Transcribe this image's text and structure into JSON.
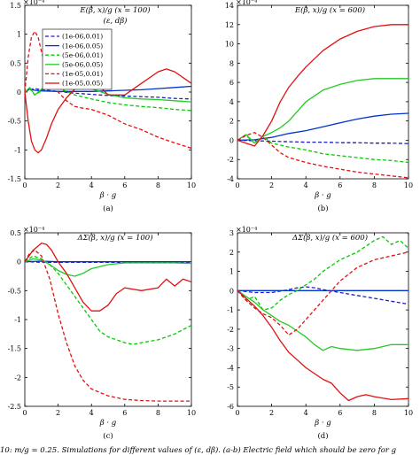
{
  "colors": {
    "series_1": "#1f1fbf",
    "series_2": "#0033cc",
    "series_3": "#00cc00",
    "series_4": "#22cc22",
    "series_5": "#e01010",
    "series_6": "#e01010"
  },
  "legend": [
    "(1e-06,0.01)",
    "(1e-06,0.05)",
    "(5e-06,0.01)",
    "(5e-06,0.05)",
    "(1e-05,0.01)",
    "(1e-05,0.05)"
  ],
  "bottom_caption": "10:  m/g = 0.25.  Simulations for different values of (ε, dβ).  (a-b) Electric field which should be zero for g",
  "chart_data": [
    {
      "type": "line",
      "panel": "(a)",
      "title": "E(β, x)/g (x = 100)",
      "subtitle": "(ε, dβ)",
      "exponent": "×10⁻⁴",
      "xlabel": "β · g",
      "ylabel": "",
      "xlim": [
        0,
        10
      ],
      "ylim": [
        -1.5,
        1.5
      ],
      "xticks": [
        0,
        2,
        4,
        6,
        8,
        10
      ],
      "yticks": [
        -1.5,
        -1,
        -0.5,
        0,
        0.5,
        1,
        1.5
      ],
      "legend_position": "top-left",
      "series": [
        {
          "name": "(1e-06,0.01)",
          "style": "dashed",
          "x": [
            0,
            0.3,
            0.6,
            1,
            2,
            3,
            4,
            5,
            6,
            7,
            8,
            9,
            10
          ],
          "y": [
            0,
            0.04,
            0.06,
            0.04,
            0.01,
            -0.02,
            -0.04,
            -0.06,
            -0.07,
            -0.08,
            -0.09,
            -0.11,
            -0.12
          ]
        },
        {
          "name": "(1e-06,0.05)",
          "style": "solid",
          "x": [
            0,
            0.3,
            0.6,
            1,
            2,
            3,
            4,
            5,
            6,
            7,
            8,
            9,
            10
          ],
          "y": [
            0,
            0.05,
            0.03,
            0.02,
            0.01,
            0.01,
            0.01,
            0.02,
            0.03,
            0.04,
            0.06,
            0.08,
            0.1
          ]
        },
        {
          "name": "(5e-06,0.01)",
          "style": "dashed",
          "x": [
            0,
            0.3,
            0.6,
            1,
            1.5,
            2,
            3,
            4,
            5,
            6,
            7,
            8,
            9,
            10
          ],
          "y": [
            0,
            0.06,
            -0.05,
            0.02,
            0.12,
            0.07,
            -0.05,
            -0.12,
            -0.18,
            -0.22,
            -0.25,
            -0.27,
            -0.3,
            -0.32
          ]
        },
        {
          "name": "(5e-06,0.05)",
          "style": "solid",
          "x": [
            0,
            0.3,
            0.6,
            1,
            1.5,
            2,
            2.5,
            3,
            4,
            5,
            6,
            7,
            8,
            9,
            10
          ],
          "y": [
            0,
            0.08,
            -0.05,
            0.05,
            0.15,
            0.27,
            0.28,
            0.22,
            0.06,
            -0.04,
            -0.1,
            -0.12,
            -0.13,
            -0.15,
            -0.17
          ]
        },
        {
          "name": "(1e-05,0.01)",
          "style": "dashed",
          "x": [
            0,
            0.2,
            0.4,
            0.6,
            0.8,
            1,
            1.3,
            1.6,
            2,
            2.5,
            3,
            3.5,
            4,
            5,
            6,
            7,
            8,
            9,
            10
          ],
          "y": [
            0,
            0.6,
            0.95,
            1.05,
            0.95,
            0.7,
            0.4,
            0.15,
            0.0,
            -0.15,
            -0.25,
            -0.28,
            -0.3,
            -0.4,
            -0.55,
            -0.65,
            -0.78,
            -0.88,
            -0.97
          ]
        },
        {
          "name": "(1e-05,0.05)",
          "style": "solid",
          "x": [
            0,
            0.2,
            0.4,
            0.6,
            0.8,
            1,
            1.3,
            1.6,
            2,
            2.5,
            3,
            3.5,
            4,
            4.5,
            5,
            6,
            7,
            8,
            8.5,
            9,
            10
          ],
          "y": [
            0,
            -0.5,
            -0.85,
            -1.0,
            -1.05,
            -1.0,
            -0.8,
            -0.55,
            -0.3,
            -0.1,
            0.05,
            0.2,
            0.2,
            0.1,
            -0.05,
            -0.05,
            0.15,
            0.35,
            0.4,
            0.35,
            0.15
          ]
        }
      ]
    },
    {
      "type": "line",
      "panel": "(b)",
      "title": "E(β, x)/g (x = 600)",
      "exponent": "×10⁻⁴",
      "xlabel": "β · g",
      "ylabel": "",
      "xlim": [
        0,
        10
      ],
      "ylim": [
        -4,
        14
      ],
      "xticks": [
        0,
        2,
        4,
        6,
        8,
        10
      ],
      "yticks": [
        -4,
        -2,
        0,
        2,
        4,
        6,
        8,
        10,
        12,
        14
      ],
      "series": [
        {
          "name": "(1e-06,0.01)",
          "style": "dashed",
          "x": [
            0,
            1,
            2,
            3,
            4,
            5,
            6,
            7,
            8,
            9,
            10
          ],
          "y": [
            0,
            -0.05,
            -0.1,
            -0.15,
            -0.2,
            -0.2,
            -0.25,
            -0.25,
            -0.3,
            -0.3,
            -0.35
          ]
        },
        {
          "name": "(1e-06,0.05)",
          "style": "solid",
          "x": [
            0,
            1,
            2,
            3,
            4,
            5,
            6,
            7,
            8,
            9,
            10
          ],
          "y": [
            0,
            0.05,
            0.3,
            0.7,
            1.0,
            1.4,
            1.8,
            2.2,
            2.5,
            2.7,
            2.8
          ]
        },
        {
          "name": "(5e-06,0.01)",
          "style": "dashed",
          "x": [
            0,
            0.5,
            1,
            1.5,
            2,
            3,
            4,
            5,
            6,
            7,
            8,
            9,
            10
          ],
          "y": [
            0,
            0.5,
            -0.3,
            0.4,
            -0.3,
            -0.7,
            -1.0,
            -1.4,
            -1.6,
            -1.8,
            -2.0,
            -2.1,
            -2.3
          ]
        },
        {
          "name": "(5e-06,0.05)",
          "style": "solid",
          "x": [
            0,
            0.5,
            1,
            1.5,
            2,
            2.5,
            3,
            3.5,
            4,
            5,
            6,
            7,
            8,
            9,
            10
          ],
          "y": [
            0,
            0.6,
            -0.3,
            0.4,
            0.8,
            1.3,
            2.0,
            3.0,
            4.0,
            5.2,
            5.8,
            6.2,
            6.4,
            6.4,
            6.4
          ]
        },
        {
          "name": "(1e-05,0.01)",
          "style": "dashed",
          "x": [
            0,
            0.5,
            1,
            1.5,
            2,
            2.5,
            3,
            4,
            5,
            6,
            7,
            8,
            9,
            10
          ],
          "y": [
            0,
            0.5,
            0.8,
            0.3,
            -0.5,
            -1.3,
            -1.8,
            -2.3,
            -2.7,
            -3.0,
            -3.3,
            -3.5,
            -3.7,
            -3.9
          ]
        },
        {
          "name": "(1e-05,0.05)",
          "style": "solid",
          "x": [
            0,
            0.5,
            1,
            1.5,
            2,
            2.5,
            3,
            3.5,
            4,
            5,
            6,
            7,
            8,
            9,
            10
          ],
          "y": [
            0,
            -0.3,
            -0.6,
            0.5,
            2.0,
            4.0,
            5.5,
            6.6,
            7.6,
            9.3,
            10.5,
            11.3,
            11.8,
            12.0,
            12.0
          ]
        }
      ]
    },
    {
      "type": "line",
      "panel": "(c)",
      "title": "ΔΣ(β, x)/g (x = 100)",
      "exponent": "×10⁻⁴",
      "xlabel": "β · g",
      "ylabel": "",
      "xlim": [
        0,
        10
      ],
      "ylim": [
        -2.5,
        0.5
      ],
      "xticks": [
        0,
        2,
        4,
        6,
        8,
        10
      ],
      "yticks": [
        -2.5,
        -2,
        -1.5,
        -1,
        -0.5,
        0,
        0.5
      ],
      "series": [
        {
          "name": "(1e-06,0.01)",
          "style": "dashed",
          "x": [
            0,
            1,
            2,
            3,
            4,
            5,
            6,
            7,
            8,
            9,
            10
          ],
          "y": [
            0,
            -0.01,
            -0.01,
            -0.01,
            -0.01,
            -0.01,
            -0.01,
            -0.01,
            -0.01,
            -0.01,
            -0.01
          ]
        },
        {
          "name": "(1e-06,0.05)",
          "style": "solid",
          "x": [
            0,
            1,
            2,
            3,
            4,
            5,
            6,
            7,
            8,
            9,
            10
          ],
          "y": [
            0,
            0.01,
            0,
            0,
            0,
            0,
            0,
            0,
            0,
            0,
            0
          ]
        },
        {
          "name": "(5e-06,0.01)",
          "style": "dashed",
          "x": [
            0,
            0.5,
            1,
            1.5,
            2,
            2.5,
            3,
            3.5,
            4,
            4.5,
            5,
            5.5,
            6,
            6.5,
            7,
            8,
            9,
            10
          ],
          "y": [
            0,
            0.1,
            0.05,
            -0.05,
            -0.2,
            -0.4,
            -0.6,
            -0.8,
            -1.0,
            -1.2,
            -1.3,
            -1.35,
            -1.4,
            -1.43,
            -1.4,
            -1.35,
            -1.25,
            -1.1
          ]
        },
        {
          "name": "(5e-06,0.05)",
          "style": "solid",
          "x": [
            0,
            0.5,
            1,
            1.5,
            2,
            2.5,
            3,
            3.5,
            4,
            5,
            6,
            7,
            8,
            9,
            10
          ],
          "y": [
            0,
            0.05,
            0.03,
            -0.05,
            -0.15,
            -0.22,
            -0.25,
            -0.2,
            -0.12,
            -0.05,
            -0.02,
            -0.02,
            -0.02,
            -0.02,
            -0.03
          ]
        },
        {
          "name": "(1e-05,0.01)",
          "style": "dashed",
          "x": [
            0,
            0.3,
            0.6,
            1,
            1.5,
            2,
            2.5,
            3,
            3.5,
            4,
            5,
            6,
            7,
            8,
            9,
            10
          ],
          "y": [
            0,
            0.15,
            0.2,
            0.1,
            -0.3,
            -0.9,
            -1.4,
            -1.8,
            -2.05,
            -2.2,
            -2.32,
            -2.38,
            -2.4,
            -2.41,
            -2.41,
            -2.41
          ]
        },
        {
          "name": "(1e-05,0.05)",
          "style": "solid",
          "x": [
            0,
            0.5,
            1,
            1.3,
            1.6,
            2,
            2.5,
            3,
            3.5,
            4,
            4.5,
            5,
            5.5,
            6,
            7,
            8,
            8.5,
            9,
            9.5,
            10
          ],
          "y": [
            0,
            0.2,
            0.32,
            0.3,
            0.2,
            0.0,
            -0.2,
            -0.45,
            -0.7,
            -0.85,
            -0.85,
            -0.75,
            -0.55,
            -0.45,
            -0.5,
            -0.45,
            -0.3,
            -0.42,
            -0.3,
            -0.35
          ]
        }
      ]
    },
    {
      "type": "line",
      "panel": "(d)",
      "title": "ΔΣ(β, x)/g (x = 600)",
      "exponent": "×10⁻⁴",
      "xlabel": "β · g",
      "ylabel": "",
      "xlim": [
        0,
        10
      ],
      "ylim": [
        -6,
        3
      ],
      "xticks": [
        0,
        2,
        4,
        6,
        8,
        10
      ],
      "yticks": [
        -6,
        -5,
        -4,
        -3,
        -2,
        -1,
        0,
        1,
        2,
        3
      ],
      "series": [
        {
          "name": "(1e-06,0.01)",
          "style": "dashed",
          "x": [
            0,
            1,
            2,
            3,
            3.5,
            4,
            4.5,
            5,
            6,
            7,
            8,
            9,
            10
          ],
          "y": [
            0,
            -0.1,
            -0.1,
            0.05,
            0.15,
            0.2,
            0.15,
            0.05,
            -0.1,
            -0.25,
            -0.4,
            -0.55,
            -0.7
          ]
        },
        {
          "name": "(1e-06,0.05)",
          "style": "solid",
          "x": [
            0,
            2,
            4,
            6,
            8,
            10
          ],
          "y": [
            0,
            0,
            0,
            0,
            0,
            0
          ]
        },
        {
          "name": "(5e-06,0.01)",
          "style": "dashed",
          "x": [
            0,
            0.5,
            1,
            1.5,
            2,
            2.5,
            3,
            3.5,
            4,
            4.5,
            5,
            6,
            7,
            8,
            8.5,
            9,
            9.5,
            10
          ],
          "y": [
            0,
            -0.5,
            -0.3,
            -1.0,
            -0.9,
            -0.5,
            -0.2,
            0.0,
            0.3,
            0.6,
            1.0,
            1.6,
            2.0,
            2.6,
            2.8,
            2.4,
            2.6,
            2.2
          ]
        },
        {
          "name": "(5e-06,0.05)",
          "style": "solid",
          "x": [
            0,
            0.5,
            1,
            1.5,
            2,
            2.5,
            3,
            3.5,
            4,
            4.5,
            5,
            5.5,
            6,
            7,
            8,
            9,
            10
          ],
          "y": [
            0,
            -0.3,
            -0.6,
            -1.0,
            -1.3,
            -1.6,
            -1.8,
            -2.1,
            -2.4,
            -2.8,
            -3.1,
            -2.9,
            -3.0,
            -3.1,
            -3.0,
            -2.8,
            -2.8
          ]
        },
        {
          "name": "(1e-05,0.01)",
          "style": "dashed",
          "x": [
            0,
            0.5,
            1,
            1.5,
            2,
            2.5,
            3,
            3.5,
            4,
            4.5,
            5,
            6,
            7,
            8,
            9,
            10
          ],
          "y": [
            0,
            -0.5,
            -0.9,
            -1.2,
            -1.4,
            -1.8,
            -2.3,
            -2.0,
            -1.5,
            -1.0,
            -0.5,
            0.5,
            1.2,
            1.6,
            1.8,
            2.0
          ]
        },
        {
          "name": "(1e-05,0.05)",
          "style": "solid",
          "x": [
            0,
            0.5,
            1,
            1.5,
            2,
            2.5,
            3,
            3.5,
            4,
            4.5,
            5,
            5.5,
            6,
            6.5,
            7,
            7.5,
            8,
            9,
            10
          ],
          "y": [
            0,
            -0.4,
            -0.8,
            -1.3,
            -1.9,
            -2.6,
            -3.2,
            -3.6,
            -4.0,
            -4.3,
            -4.6,
            -4.8,
            -5.3,
            -5.7,
            -5.5,
            -5.4,
            -5.5,
            -5.65,
            -5.6
          ]
        }
      ]
    }
  ]
}
